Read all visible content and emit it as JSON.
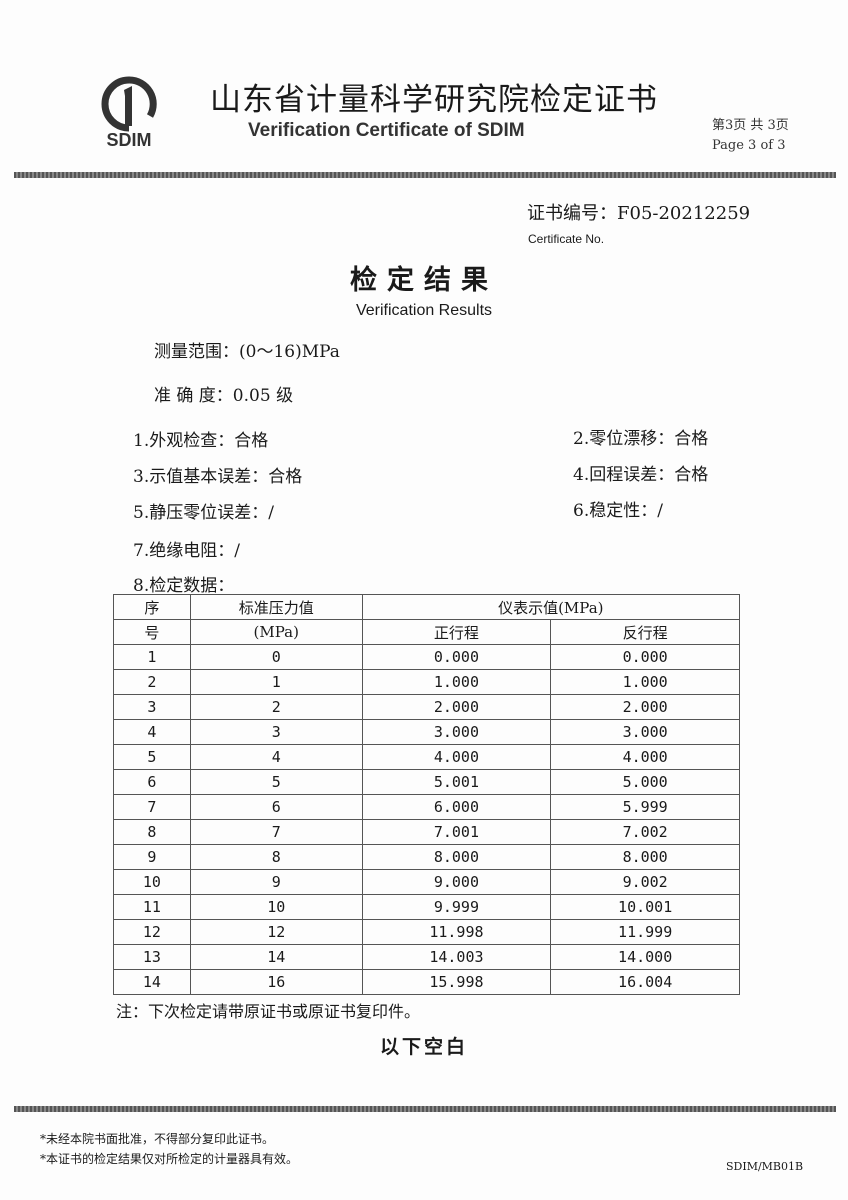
{
  "header": {
    "logo_text": "SDIM",
    "title_cn": "山东省计量科学研究院检定证书",
    "title_en": "Verification Certificate of SDIM",
    "page_cn": "第3页 共 3页",
    "page_en": "Page 3  of 3"
  },
  "certificate": {
    "number_label": "证书编号：F05-20212259",
    "number_label_en": "Certificate No."
  },
  "results": {
    "title_cn": "检定结果",
    "title_en": "Verification Results",
    "range": "测量范围：(0～16)MPa",
    "accuracy": "准 确 度：0.05 级",
    "items": [
      "1.外观检查：合格",
      "2.零位漂移：合格",
      "3.示值基本误差：合格",
      "4.回程误差：合格",
      "5.静压零位误差：/",
      "6.稳定性：/",
      "7.绝缘电阻：/",
      "8.检定数据："
    ]
  },
  "table": {
    "h_no_1": "序",
    "h_no_2": "号",
    "h_std_1": "标准压力值",
    "h_std_2": "(MPa)",
    "h_ind": "仪表示值(MPa)",
    "h_fwd": "正行程",
    "h_rev": "反行程",
    "rows": [
      [
        "1",
        "0",
        "0.000",
        "0.000"
      ],
      [
        "2",
        "1",
        "1.000",
        "1.000"
      ],
      [
        "3",
        "2",
        "2.000",
        "2.000"
      ],
      [
        "4",
        "3",
        "3.000",
        "3.000"
      ],
      [
        "5",
        "4",
        "4.000",
        "4.000"
      ],
      [
        "6",
        "5",
        "5.001",
        "5.000"
      ],
      [
        "7",
        "6",
        "6.000",
        "5.999"
      ],
      [
        "8",
        "7",
        "7.001",
        "7.002"
      ],
      [
        "9",
        "8",
        "8.000",
        "8.000"
      ],
      [
        "10",
        "9",
        "9.000",
        "9.002"
      ],
      [
        "11",
        "10",
        "9.999",
        "10.001"
      ],
      [
        "12",
        "12",
        "11.998",
        "11.999"
      ],
      [
        "13",
        "14",
        "14.003",
        "14.000"
      ],
      [
        "14",
        "16",
        "15.998",
        "16.004"
      ]
    ]
  },
  "note": "注：下次检定请带原证书或原证书复印件。",
  "blank": "以下空白",
  "footer": {
    "line1": "*未经本院书面批准，不得部分复印此证书。",
    "line2": "*本证书的检定结果仅对所检定的计量器具有效。",
    "code": "SDIM/MB01B"
  }
}
